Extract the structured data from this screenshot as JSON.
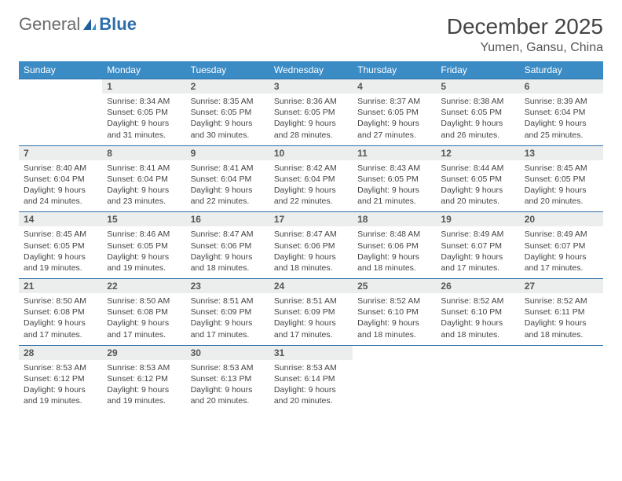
{
  "logo": {
    "text1": "General",
    "text2": "Blue",
    "icon_color": "#1e5e9a"
  },
  "title": "December 2025",
  "location": "Yumen, Gansu, China",
  "header_bg": "#3b8bc5",
  "daynum_bg": "#eceeee",
  "rule_color": "#2f6fa8",
  "weekdays": [
    "Sunday",
    "Monday",
    "Tuesday",
    "Wednesday",
    "Thursday",
    "Friday",
    "Saturday"
  ],
  "first_weekday_index": 1,
  "days": [
    {
      "n": 1,
      "sr": "8:34 AM",
      "ss": "6:05 PM",
      "dl": "9 hours and 31 minutes."
    },
    {
      "n": 2,
      "sr": "8:35 AM",
      "ss": "6:05 PM",
      "dl": "9 hours and 30 minutes."
    },
    {
      "n": 3,
      "sr": "8:36 AM",
      "ss": "6:05 PM",
      "dl": "9 hours and 28 minutes."
    },
    {
      "n": 4,
      "sr": "8:37 AM",
      "ss": "6:05 PM",
      "dl": "9 hours and 27 minutes."
    },
    {
      "n": 5,
      "sr": "8:38 AM",
      "ss": "6:05 PM",
      "dl": "9 hours and 26 minutes."
    },
    {
      "n": 6,
      "sr": "8:39 AM",
      "ss": "6:04 PM",
      "dl": "9 hours and 25 minutes."
    },
    {
      "n": 7,
      "sr": "8:40 AM",
      "ss": "6:04 PM",
      "dl": "9 hours and 24 minutes."
    },
    {
      "n": 8,
      "sr": "8:41 AM",
      "ss": "6:04 PM",
      "dl": "9 hours and 23 minutes."
    },
    {
      "n": 9,
      "sr": "8:41 AM",
      "ss": "6:04 PM",
      "dl": "9 hours and 22 minutes."
    },
    {
      "n": 10,
      "sr": "8:42 AM",
      "ss": "6:04 PM",
      "dl": "9 hours and 22 minutes."
    },
    {
      "n": 11,
      "sr": "8:43 AM",
      "ss": "6:05 PM",
      "dl": "9 hours and 21 minutes."
    },
    {
      "n": 12,
      "sr": "8:44 AM",
      "ss": "6:05 PM",
      "dl": "9 hours and 20 minutes."
    },
    {
      "n": 13,
      "sr": "8:45 AM",
      "ss": "6:05 PM",
      "dl": "9 hours and 20 minutes."
    },
    {
      "n": 14,
      "sr": "8:45 AM",
      "ss": "6:05 PM",
      "dl": "9 hours and 19 minutes."
    },
    {
      "n": 15,
      "sr": "8:46 AM",
      "ss": "6:05 PM",
      "dl": "9 hours and 19 minutes."
    },
    {
      "n": 16,
      "sr": "8:47 AM",
      "ss": "6:06 PM",
      "dl": "9 hours and 18 minutes."
    },
    {
      "n": 17,
      "sr": "8:47 AM",
      "ss": "6:06 PM",
      "dl": "9 hours and 18 minutes."
    },
    {
      "n": 18,
      "sr": "8:48 AM",
      "ss": "6:06 PM",
      "dl": "9 hours and 18 minutes."
    },
    {
      "n": 19,
      "sr": "8:49 AM",
      "ss": "6:07 PM",
      "dl": "9 hours and 17 minutes."
    },
    {
      "n": 20,
      "sr": "8:49 AM",
      "ss": "6:07 PM",
      "dl": "9 hours and 17 minutes."
    },
    {
      "n": 21,
      "sr": "8:50 AM",
      "ss": "6:08 PM",
      "dl": "9 hours and 17 minutes."
    },
    {
      "n": 22,
      "sr": "8:50 AM",
      "ss": "6:08 PM",
      "dl": "9 hours and 17 minutes."
    },
    {
      "n": 23,
      "sr": "8:51 AM",
      "ss": "6:09 PM",
      "dl": "9 hours and 17 minutes."
    },
    {
      "n": 24,
      "sr": "8:51 AM",
      "ss": "6:09 PM",
      "dl": "9 hours and 17 minutes."
    },
    {
      "n": 25,
      "sr": "8:52 AM",
      "ss": "6:10 PM",
      "dl": "9 hours and 18 minutes."
    },
    {
      "n": 26,
      "sr": "8:52 AM",
      "ss": "6:10 PM",
      "dl": "9 hours and 18 minutes."
    },
    {
      "n": 27,
      "sr": "8:52 AM",
      "ss": "6:11 PM",
      "dl": "9 hours and 18 minutes."
    },
    {
      "n": 28,
      "sr": "8:53 AM",
      "ss": "6:12 PM",
      "dl": "9 hours and 19 minutes."
    },
    {
      "n": 29,
      "sr": "8:53 AM",
      "ss": "6:12 PM",
      "dl": "9 hours and 19 minutes."
    },
    {
      "n": 30,
      "sr": "8:53 AM",
      "ss": "6:13 PM",
      "dl": "9 hours and 20 minutes."
    },
    {
      "n": 31,
      "sr": "8:53 AM",
      "ss": "6:14 PM",
      "dl": "9 hours and 20 minutes."
    }
  ],
  "labels": {
    "sunrise": "Sunrise:",
    "sunset": "Sunset:",
    "daylight": "Daylight:"
  }
}
